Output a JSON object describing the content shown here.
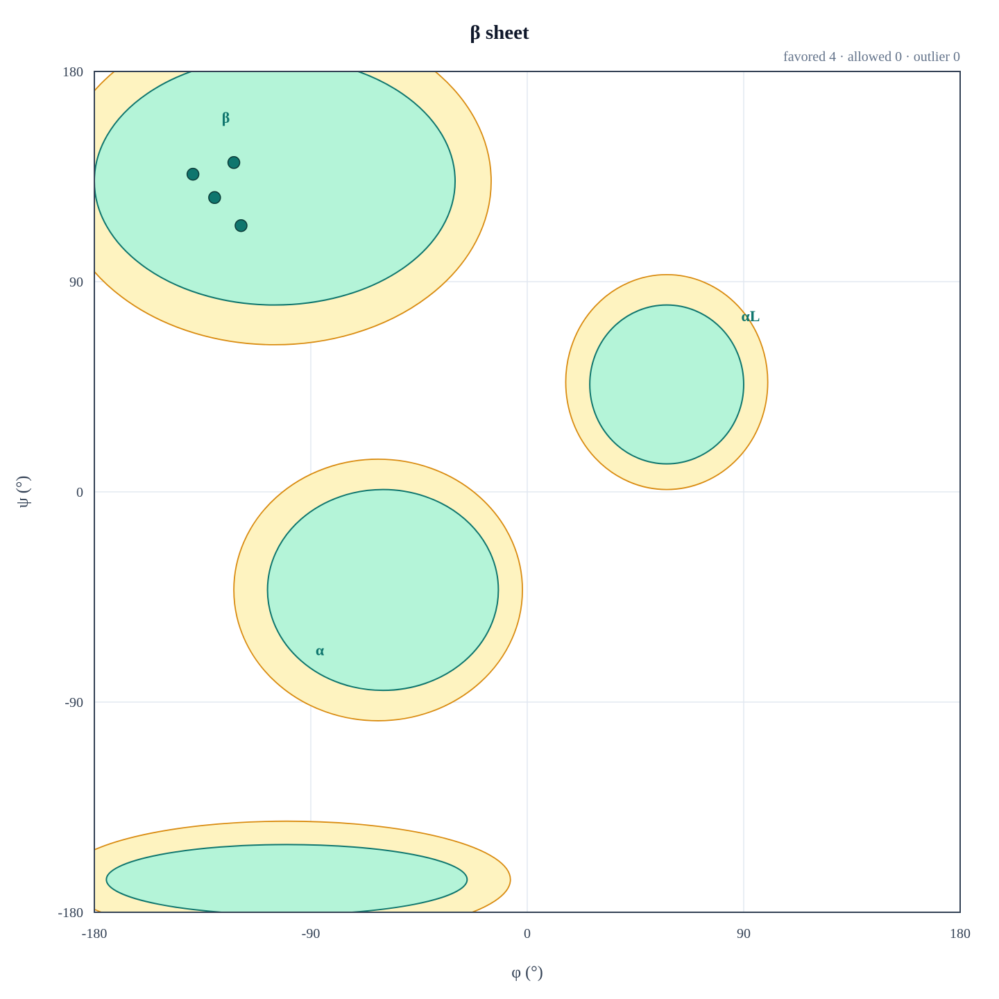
{
  "chart_data": {
    "type": "scatter",
    "title": "β sheet",
    "summary": "favored 4 · allowed 0 · outlier 0",
    "xlabel": "φ (°)",
    "ylabel": "ψ (°)",
    "xlim": [
      -180,
      180
    ],
    "ylim": [
      -180,
      180
    ],
    "xticks": [
      "-180",
      "-90",
      "0",
      "90",
      "180"
    ],
    "yticks": [
      "180",
      "90",
      "0",
      "-90",
      "-180"
    ],
    "grid": true,
    "colors": {
      "favored_fill": "#b4f4d8",
      "favored_stroke": "#0f766e",
      "allowed_fill": "#fef3c0",
      "allowed_stroke": "#d98b10",
      "point_fill": "#0f766e",
      "point_stroke": "#0b3b38",
      "label": "#0f766e",
      "grid": "#e2e8f0",
      "frame": "#334155"
    },
    "regions": [
      {
        "label": "β",
        "label_at": [
          -127,
          158
        ],
        "favored": {
          "cx": -105,
          "cy": 133,
          "rx": 75,
          "ry": 53
        },
        "allowed": {
          "cx": -105,
          "cy": 133,
          "rx": 90,
          "ry": 70
        }
      },
      {
        "label": "α",
        "label_at": [
          -88,
          -70
        ],
        "favored": {
          "cx": -60,
          "cy": -42,
          "rx": 48,
          "ry": 43
        },
        "allowed": {
          "cx": -62,
          "cy": -42,
          "rx": 60,
          "ry": 56
        }
      },
      {
        "label": "αL",
        "label_at": [
          89,
          73
        ],
        "favored": {
          "cx": 58,
          "cy": 46,
          "rx": 32,
          "ry": 34
        },
        "allowed": {
          "cx": 58,
          "cy": 47,
          "rx": 42,
          "ry": 46
        }
      },
      {
        "label": "",
        "label_at": null,
        "favored": {
          "cx": -100,
          "cy": -166,
          "rx": 75,
          "ry": 15
        },
        "allowed": {
          "cx": -100,
          "cy": -166,
          "rx": 93,
          "ry": 25
        }
      }
    ],
    "points": [
      {
        "phi": -139,
        "psi": 136
      },
      {
        "phi": -122,
        "psi": 141
      },
      {
        "phi": -130,
        "psi": 126
      },
      {
        "phi": -119,
        "psi": 114
      }
    ]
  }
}
